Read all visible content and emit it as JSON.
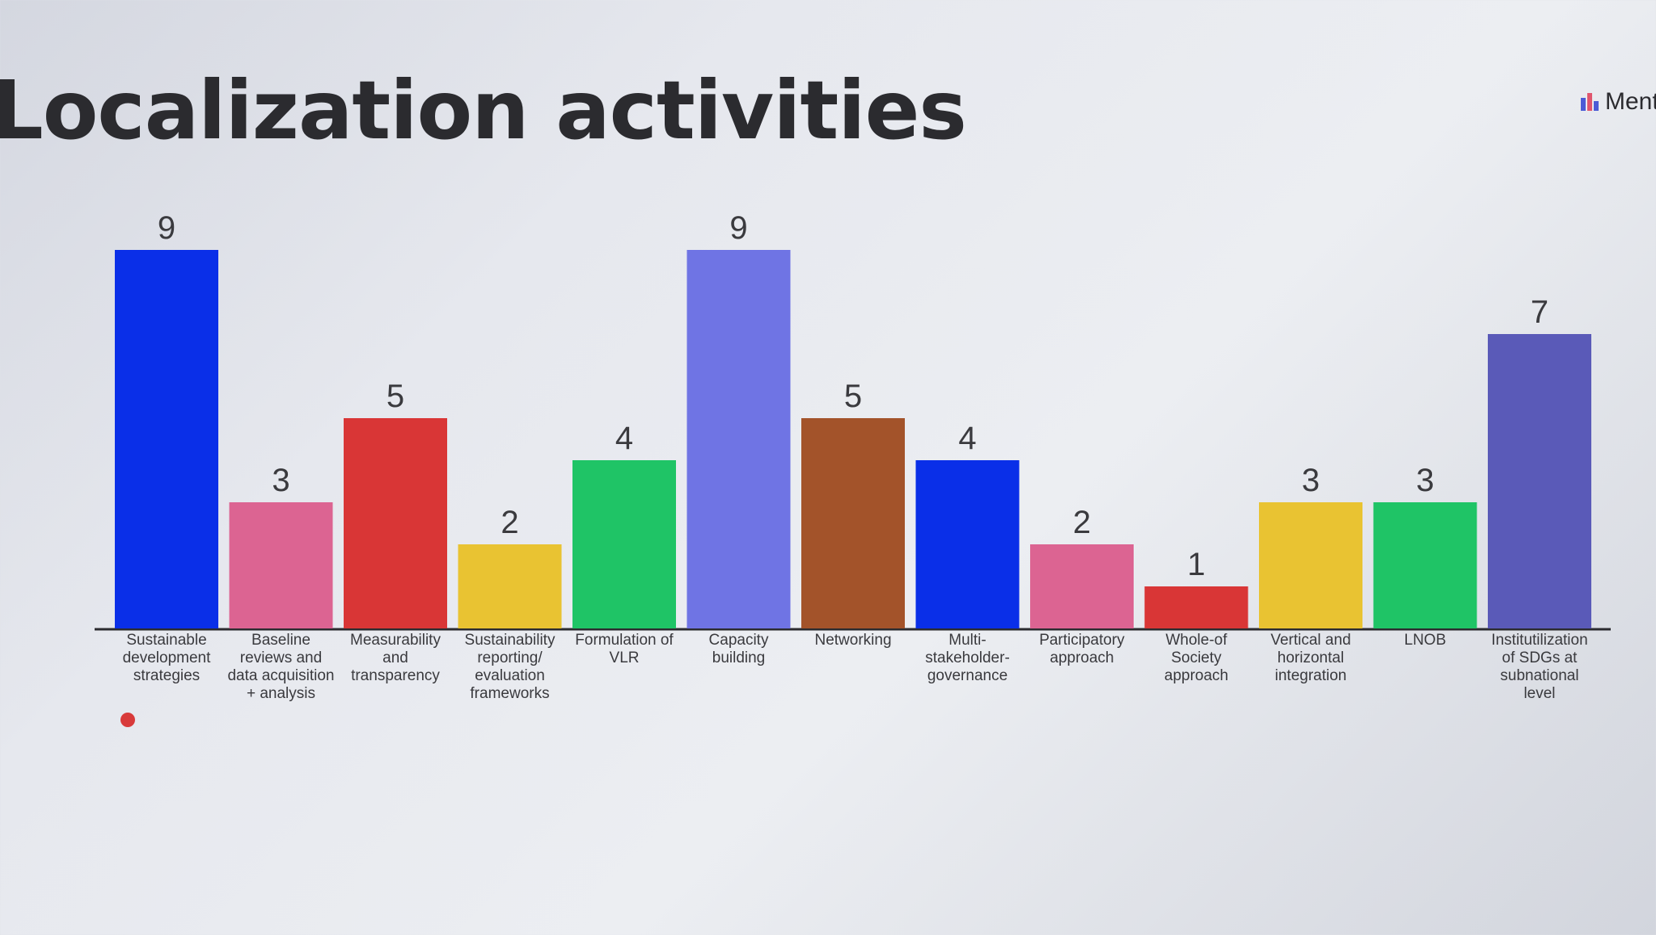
{
  "header": {
    "title": "Localization activities",
    "brand_text": "Ment"
  },
  "chart_data": {
    "type": "bar",
    "title": "Localization activities",
    "xlabel": "",
    "ylabel": "",
    "ylim": [
      0,
      9
    ],
    "grid": false,
    "categories": [
      "Sustainable development strategies",
      "Baseline reviews and data acquisition + analysis",
      "Measurability and transparency",
      "Sustainability reporting/ evaluation frameworks",
      "Formulation of VLR",
      "Capacity building",
      "Networking",
      "Multi-stakeholder-governance",
      "Participatory approach",
      "Whole-of Society approach",
      "Vertical and horizontal integration",
      "LNOB",
      "Institutilization of SDGs at subnational level"
    ],
    "values": [
      9,
      3,
      5,
      2,
      4,
      9,
      5,
      4,
      2,
      1,
      3,
      3,
      7
    ],
    "colors": [
      "#0a2fe8",
      "#dc6492",
      "#d93636",
      "#e9c332",
      "#1fc466",
      "#6f74e4",
      "#a3532a",
      "#0a2fe8",
      "#dc6492",
      "#d93636",
      "#e9c332",
      "#1fc466",
      "#5a5ab8"
    ]
  }
}
